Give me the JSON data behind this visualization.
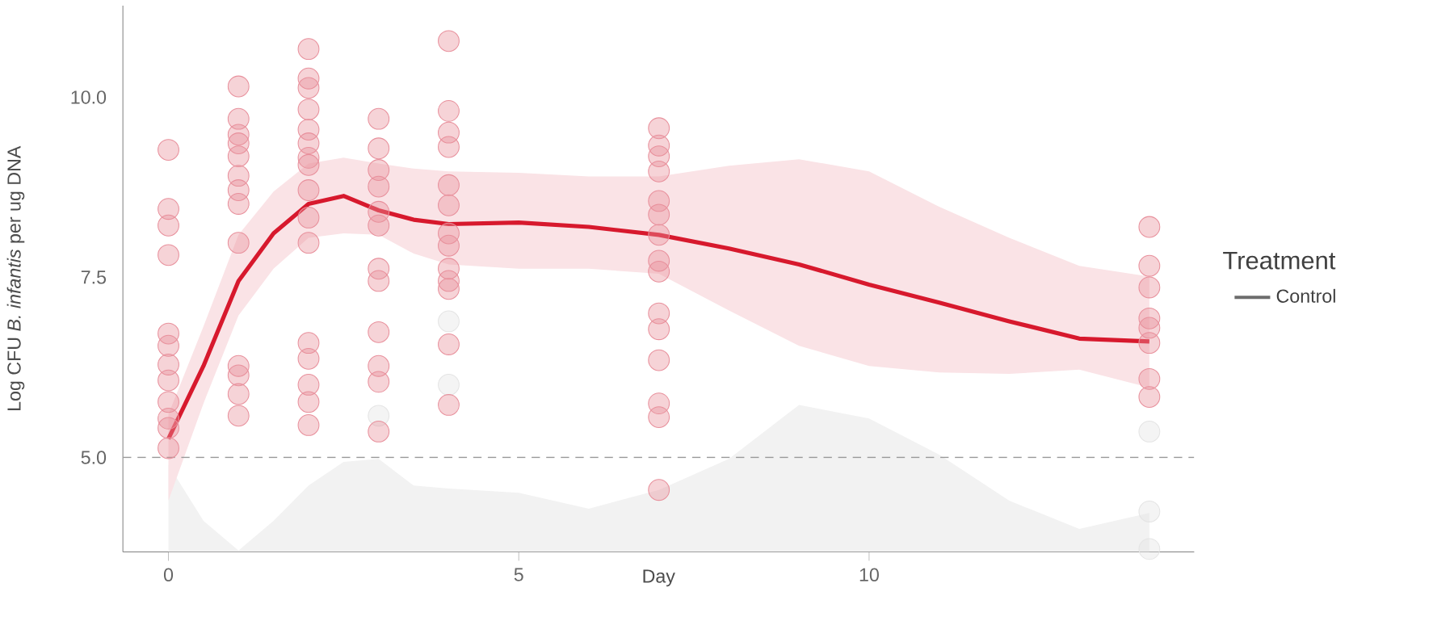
{
  "chart_data": {
    "type": "scatter",
    "xlabel": "Day",
    "ylabel": "Log CFU *B. infantis* per ug DNA",
    "legend_title": "Treatment",
    "legend": "right",
    "grid": false,
    "xlim": [
      -0.65,
      14.64
    ],
    "ylim": [
      3.69,
      11.27
    ],
    "xticks": [
      0,
      5,
      10
    ],
    "yticks": [
      {
        "value": 5,
        "label": "5.0"
      },
      {
        "value": 7.5,
        "label": "7.5"
      },
      {
        "value": 10,
        "label": "10.0"
      }
    ],
    "ref_lines": [
      {
        "axis": "y",
        "value": 5,
        "color": "#999999",
        "line_style": "dashed"
      }
    ],
    "series": [
      {
        "name": "Control",
        "type": "area",
        "color": "#f2f2f2",
        "x": [
          0,
          0.5,
          1,
          1.5,
          2,
          2.5,
          3,
          3.5,
          4,
          5,
          6,
          7,
          8,
          9,
          10,
          11,
          12,
          13,
          14
        ],
        "values": [
          4.9,
          4.12,
          3.71,
          4.12,
          4.61,
          4.94,
          4.98,
          4.61,
          4.57,
          4.51,
          4.29,
          4.55,
          4.98,
          5.73,
          5.54,
          5.04,
          4.4,
          4.01,
          4.23
        ]
      },
      {
        "marker": "circle",
        "color": "#e4e4e4",
        "x": [
          3,
          4,
          4,
          14,
          14,
          14
        ],
        "values": [
          5.58,
          6.89,
          6.01,
          5.36,
          4.25,
          3.73
        ]
      },
      {
        "marker": "circle",
        "color": "#e8909c",
        "x": [
          0,
          0,
          0,
          0,
          0,
          0,
          0,
          0,
          0,
          0,
          0,
          0,
          1,
          1,
          1,
          1,
          1,
          1,
          1,
          1,
          1,
          1,
          1,
          1,
          1,
          2,
          2,
          2,
          2,
          2,
          2,
          2,
          2,
          2,
          2,
          2,
          2,
          2,
          2,
          2,
          2,
          3,
          3,
          3,
          3,
          3,
          3,
          3,
          3,
          3,
          3,
          3,
          3,
          4,
          4,
          4,
          4,
          4,
          4,
          4,
          4,
          4,
          4,
          4,
          4,
          4,
          7,
          7,
          7,
          7,
          7,
          7,
          7,
          7,
          7,
          7,
          7,
          7,
          7,
          7,
          7,
          14,
          14,
          14,
          14,
          14,
          14,
          14,
          14
        ],
        "values": [
          9.27,
          8.45,
          8.22,
          7.81,
          6.72,
          6.55,
          6.29,
          6.07,
          5.77,
          5.54,
          5.41,
          5.13,
          10.15,
          9.7,
          9.48,
          9.36,
          9.18,
          8.91,
          8.71,
          8.52,
          7.98,
          6.27,
          6.14,
          5.88,
          5.58,
          10.67,
          10.26,
          10.13,
          9.83,
          9.55,
          9.36,
          9.16,
          9.06,
          8.71,
          8.33,
          7.98,
          6.59,
          6.37,
          6.01,
          5.77,
          5.45,
          9.7,
          9.29,
          8.99,
          8.76,
          8.41,
          8.22,
          7.62,
          7.45,
          6.74,
          6.27,
          6.05,
          5.36,
          10.78,
          9.81,
          9.51,
          9.31,
          8.78,
          8.5,
          8.11,
          7.94,
          7.62,
          7.45,
          7.34,
          6.57,
          5.73,
          9.57,
          9.33,
          9.18,
          8.97,
          8.56,
          8.37,
          8.09,
          7.73,
          7.58,
          7.0,
          6.78,
          6.35,
          5.75,
          5.56,
          4.55,
          8.2,
          7.66,
          7.36,
          6.93,
          6.8,
          6.59,
          6.09,
          5.84
        ]
      },
      {
        "type": "line",
        "color": "#d7192d",
        "x": [
          0,
          0.5,
          1,
          1.5,
          2,
          2.5,
          3,
          3.5,
          4,
          5,
          6,
          7,
          8,
          9,
          10,
          11,
          12,
          13,
          14
        ],
        "values": [
          5.26,
          6.27,
          7.45,
          8.11,
          8.52,
          8.63,
          8.43,
          8.3,
          8.24,
          8.26,
          8.2,
          8.09,
          7.9,
          7.68,
          7.4,
          7.15,
          6.89,
          6.65,
          6.61
        ],
        "lower": [
          4.4,
          5.75,
          6.97,
          7.62,
          8.05,
          8.11,
          8.09,
          7.83,
          7.68,
          7.62,
          7.62,
          7.55,
          7.04,
          6.55,
          6.27,
          6.18,
          6.16,
          6.22,
          5.97
        ],
        "upper": [
          5.6,
          6.82,
          8.09,
          8.69,
          9.08,
          9.16,
          9.08,
          9.01,
          8.97,
          8.95,
          8.9,
          8.9,
          9.05,
          9.14,
          8.97,
          8.48,
          8.05,
          7.66,
          7.51
        ]
      }
    ]
  }
}
